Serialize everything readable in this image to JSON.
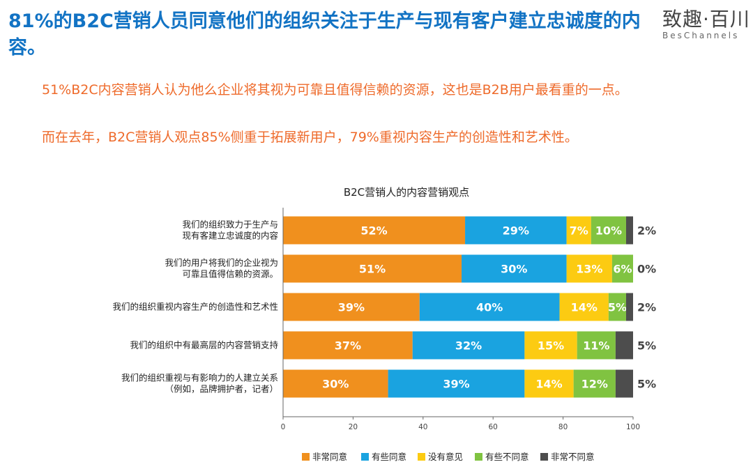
{
  "title": "81%的B2C营销人员同意他们的组织关注于生产与现有客户建立忠诚度的内容。",
  "logo": {
    "cn": "致趣·百川",
    "en": "BesChannels"
  },
  "subtext": [
    "51%B2C内容营销人认为他么企业将其视为可靠且值得信赖的资源，这也是B2B用户最看重的一点。",
    "而在去年，B2C营销人观点85%侧重于拓展新用户，79%重视内容生产的创造性和艺术性。"
  ],
  "chart_data": {
    "type": "bar",
    "orientation": "horizontal",
    "stacked": true,
    "title": "B2C营销人的内容营销观点",
    "categories": [
      [
        "我们的组织致力于生产与",
        "现有客建立忠诚度的内容"
      ],
      [
        "我们的用户将我们的企业视为",
        "可靠且值得信赖的资源。"
      ],
      [
        "我们的组织重视内容生产的创造性和艺术性"
      ],
      [
        "我们的组织中有最高层的内容营销支持"
      ],
      [
        "我们的组织重视与有影响力的人建立关系",
        "（例如，品牌拥护者，记者）"
      ]
    ],
    "series": [
      {
        "name": "非常同意",
        "color": "#f0901e",
        "values": [
          52,
          51,
          39,
          37,
          30
        ]
      },
      {
        "name": "有些同意",
        "color": "#1aa3e0",
        "values": [
          29,
          30,
          40,
          32,
          39
        ]
      },
      {
        "name": "没有意见",
        "color": "#fccb12",
        "values": [
          7,
          13,
          14,
          15,
          14
        ]
      },
      {
        "name": "有些不同意",
        "color": "#80c341",
        "values": [
          10,
          6,
          5,
          11,
          12
        ]
      },
      {
        "name": "非常不同意",
        "color": "#4d4d4d",
        "values": [
          2,
          0,
          2,
          5,
          5
        ]
      }
    ],
    "xlim": [
      0,
      100
    ],
    "xticks": [
      0,
      20,
      40,
      60,
      80,
      100
    ],
    "value_suffix": "%",
    "legend_position": "bottom",
    "grid": false
  }
}
